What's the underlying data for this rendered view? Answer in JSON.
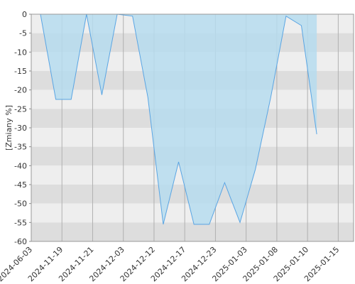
{
  "chart_data": {
    "type": "area",
    "y_label": "[Zmiany %]",
    "x": [
      0,
      1,
      2,
      3,
      4,
      5,
      6,
      7,
      8,
      9,
      10,
      11,
      12,
      13,
      14,
      15,
      16,
      17,
      18
    ],
    "values": [
      0,
      -22.5,
      -22.5,
      0,
      -21.3,
      0,
      -0.5,
      -22,
      -55.5,
      -39,
      -55.5,
      -55.5,
      -44.5,
      -55,
      -41,
      -22,
      -0.5,
      -3,
      -31.7
    ],
    "color": "#b6dcee",
    "line_color": "#5aa5e3",
    "xlim": [
      -0.6,
      20.4
    ],
    "xticks": [
      {
        "value": -0.6,
        "label": "2024-06-03"
      },
      {
        "value": 1.4,
        "label": "2024-11-19"
      },
      {
        "value": 3.4,
        "label": "2024-11-21"
      },
      {
        "value": 5.4,
        "label": "2024-12-03"
      },
      {
        "value": 7.4,
        "label": "2024-12-12"
      },
      {
        "value": 9.4,
        "label": "2024-12-17"
      },
      {
        "value": 11.4,
        "label": "2024-12-23"
      },
      {
        "value": 13.4,
        "label": "2025-01-03"
      },
      {
        "value": 15.4,
        "label": "2025-01-08"
      },
      {
        "value": 17.4,
        "label": "2025-01-10"
      },
      {
        "value": 19.4,
        "label": "2025-01-15"
      }
    ],
    "ylim": [
      -60,
      0
    ],
    "yticks": [
      0,
      -5,
      -10,
      -15,
      -20,
      -25,
      -30,
      -35,
      -40,
      -45,
      -50,
      -55,
      -60
    ],
    "grid": true
  }
}
